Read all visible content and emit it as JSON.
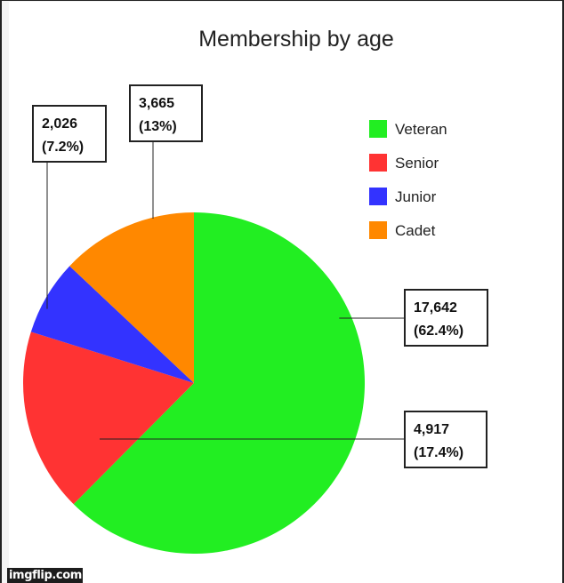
{
  "chart_data": {
    "type": "pie",
    "title": "Membership by age",
    "start_angle_deg": 0,
    "direction": "clockwise",
    "legend_position": "top-right",
    "slices": [
      {
        "name": "Veteran",
        "value": 17642,
        "label_value": "17,642",
        "label_percent": "(62.4%)",
        "color": "#22ee22"
      },
      {
        "name": "Senior",
        "value": 4917,
        "label_value": "4,917",
        "label_percent": "(17.4%)",
        "color": "#ff3333"
      },
      {
        "name": "Junior",
        "value": 2026,
        "label_value": "2,026",
        "label_percent": "(7.2%)",
        "color": "#3333ff"
      },
      {
        "name": "Cadet",
        "value": 3665,
        "label_value": "3,665",
        "label_percent": "(13%)",
        "color": "#ff8800"
      }
    ]
  },
  "watermark": "imgflip.com"
}
